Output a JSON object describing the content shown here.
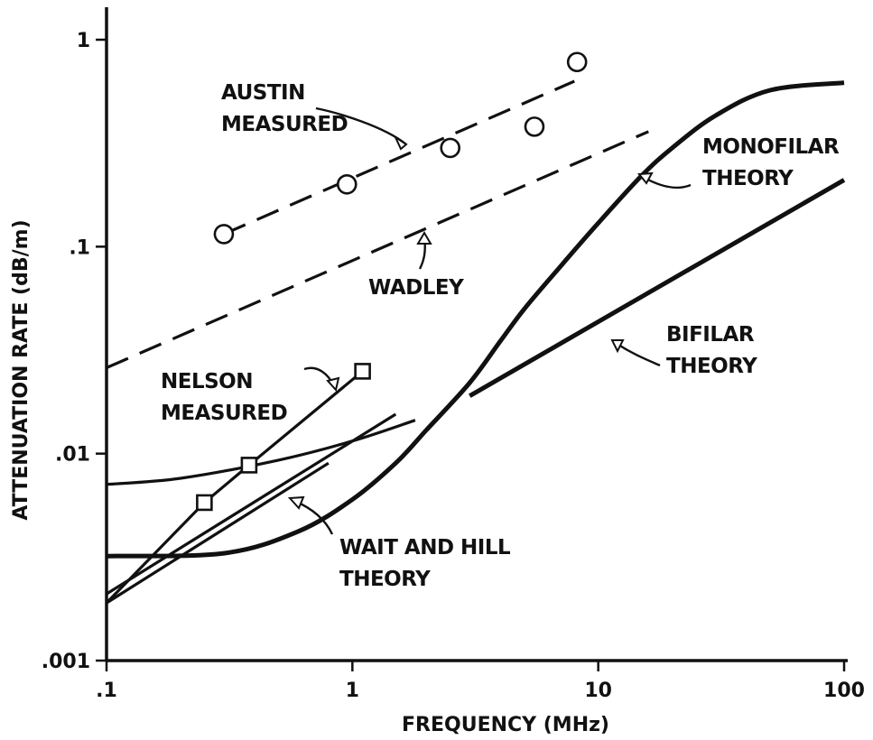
{
  "chart_data": {
    "type": "line",
    "xlabel": "FREQUENCY (MHz)",
    "ylabel": "ATTENUATION RATE (dB/m)",
    "xscale": "log",
    "yscale": "log",
    "xlim": [
      0.1,
      100
    ],
    "ylim": [
      0.001,
      1
    ],
    "x_ticks": [
      ".1",
      "1",
      "10",
      "100"
    ],
    "y_ticks": [
      ".001",
      ".01",
      ".1",
      "1"
    ],
    "grid": false,
    "legend": "none",
    "series": [
      {
        "name": "AUSTIN MEASURED",
        "style": "markers-circle",
        "x": [
          0.3,
          0.95,
          2.5,
          5.5,
          8.2
        ],
        "y": [
          0.115,
          0.2,
          0.3,
          0.38,
          0.78
        ]
      },
      {
        "name": "AUSTIN MEASURED",
        "style": "dashed",
        "x": [
          0.3,
          8.0
        ],
        "y": [
          0.115,
          0.63
        ]
      },
      {
        "name": "WADLEY",
        "style": "dashed",
        "x": [
          0.1,
          16
        ],
        "y": [
          0.026,
          0.36
        ]
      },
      {
        "name": "NELSON MEASURED",
        "style": "solid-markers-square",
        "x": [
          0.1,
          0.25,
          0.38,
          1.1
        ],
        "y": [
          0.0019,
          0.0058,
          0.0088,
          0.025
        ]
      },
      {
        "name": "MONOFILAR THEORY",
        "style": "solid",
        "x": [
          0.1,
          0.3,
          0.6,
          1.0,
          1.5,
          2.0,
          3.0,
          4.0,
          5.0,
          7.0,
          10.0,
          15.0,
          20.0,
          30.0,
          50.0,
          100.0
        ],
        "y": [
          0.0032,
          0.0033,
          0.0042,
          0.006,
          0.009,
          0.013,
          0.022,
          0.035,
          0.05,
          0.08,
          0.13,
          0.22,
          0.3,
          0.43,
          0.57,
          0.62
        ]
      },
      {
        "name": "BIFILAR THEORY",
        "style": "solid",
        "x": [
          3.0,
          100.0
        ],
        "y": [
          0.019,
          0.21
        ]
      },
      {
        "name": "WAIT AND HILL THEORY",
        "style": "solid",
        "x": [
          0.1,
          0.2,
          0.5,
          1.0,
          1.8
        ],
        "y": [
          0.0071,
          0.0076,
          0.0093,
          0.0115,
          0.0145
        ]
      },
      {
        "name": "WAIT AND HILL THEORY",
        "style": "solid",
        "x": [
          0.1,
          1.5
        ],
        "y": [
          0.0021,
          0.0155
        ]
      },
      {
        "name": "WAIT AND HILL THEORY",
        "style": "solid",
        "x": [
          0.1,
          0.8
        ],
        "y": [
          0.0019,
          0.009
        ]
      }
    ],
    "annotations": [
      {
        "lines": [
          "AUSTIN",
          "MEASURED"
        ]
      },
      {
        "lines": [
          "MONOFILAR",
          "THEORY"
        ]
      },
      {
        "lines": [
          "WADLEY"
        ]
      },
      {
        "lines": [
          "BIFILAR",
          "THEORY"
        ]
      },
      {
        "lines": [
          "NELSON",
          "MEASURED"
        ]
      },
      {
        "lines": [
          "WAIT AND HILL",
          "THEORY"
        ]
      }
    ]
  }
}
